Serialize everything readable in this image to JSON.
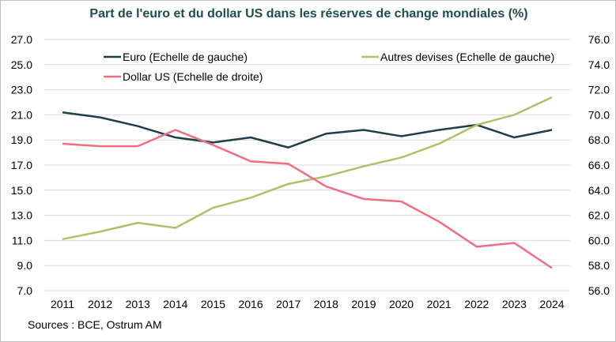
{
  "chart_data": {
    "type": "line",
    "title": "Part de l'euro et du dollar US dans les réserves de change mondiales (%)",
    "source": "Sources : BCE, Ostrum AM",
    "x": [
      2011,
      2012,
      2013,
      2014,
      2015,
      2016,
      2017,
      2018,
      2019,
      2020,
      2021,
      2022,
      2023,
      2024
    ],
    "ylim_left": [
      7.0,
      27.0
    ],
    "ylim_right": [
      56.0,
      76.0
    ],
    "left_ticks": [
      "7.0",
      "9.0",
      "11.0",
      "13.0",
      "15.0",
      "17.0",
      "19.0",
      "21.0",
      "23.0",
      "25.0",
      "27.0"
    ],
    "right_ticks": [
      "56.0",
      "58.0",
      "60.0",
      "62.0",
      "64.0",
      "66.0",
      "68.0",
      "70.0",
      "72.0",
      "74.0",
      "76.0"
    ],
    "grid": "horizontal",
    "series": [
      {
        "name": "Euro (Echelle de gauche)",
        "axis": "left",
        "color": "#1e3f48",
        "values": [
          21.2,
          20.8,
          20.1,
          19.2,
          18.8,
          19.2,
          18.4,
          19.5,
          19.8,
          19.3,
          19.8,
          20.2,
          19.2,
          19.8
        ]
      },
      {
        "name": "Autres devises (Echelle de gauche)",
        "axis": "left",
        "color": "#b5bd6b",
        "values": [
          11.1,
          11.7,
          12.4,
          12.0,
          13.6,
          14.4,
          15.5,
          16.1,
          16.9,
          17.6,
          18.7,
          20.2,
          21.0,
          22.4
        ]
      },
      {
        "name": "Dollar US (Echelle de droite)",
        "axis": "right",
        "color": "#ee6f80",
        "values": [
          67.7,
          67.5,
          67.5,
          68.8,
          67.6,
          66.3,
          66.1,
          64.3,
          63.3,
          63.1,
          61.5,
          59.5,
          59.8,
          57.8
        ]
      }
    ]
  }
}
